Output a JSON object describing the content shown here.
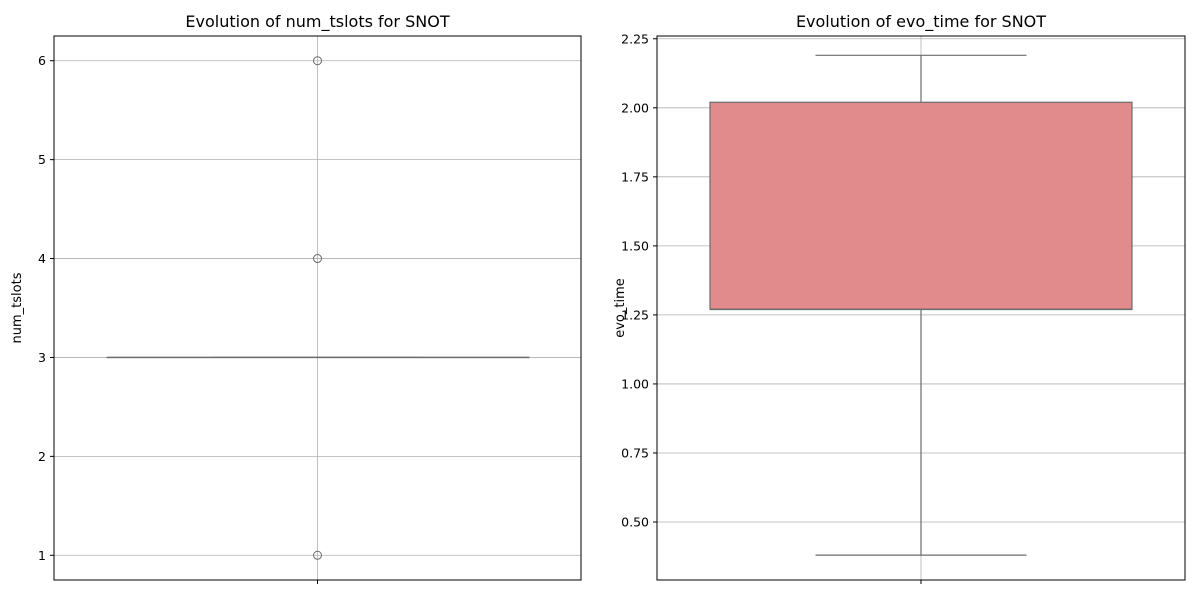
{
  "chart_data": [
    {
      "type": "box",
      "title": "Evolution of num_tslots for SNOT",
      "xlabel": "",
      "ylabel": "num_tslots",
      "ylim": [
        0.75,
        6.25
      ],
      "yticks": [
        1,
        2,
        3,
        4,
        5,
        6
      ],
      "yticklabels": [
        "1",
        "2",
        "3",
        "4",
        "5",
        "6"
      ],
      "grid": true,
      "box": {
        "whisker_low": 3,
        "q1": 3,
        "median": 3,
        "q3": 3,
        "whisker_high": 3,
        "fill": "#f08080"
      },
      "outliers": [
        1,
        4,
        6
      ]
    },
    {
      "type": "box",
      "title": "Evolution of evo_time for SNOT",
      "xlabel": "",
      "ylabel": "evo_time",
      "ylim": [
        0.29,
        2.26
      ],
      "yticks": [
        0.5,
        0.75,
        1.0,
        1.25,
        1.5,
        1.75,
        2.0,
        2.25
      ],
      "yticklabels": [
        "0.50",
        "0.75",
        "1.00",
        "1.25",
        "1.50",
        "1.75",
        "2.00",
        "2.25"
      ],
      "grid": true,
      "box": {
        "whisker_low": 0.38,
        "q1": 1.27,
        "median": 1.27,
        "q3": 2.02,
        "whisker_high": 2.19,
        "fill": "#e28b8d"
      },
      "outliers": []
    }
  ]
}
